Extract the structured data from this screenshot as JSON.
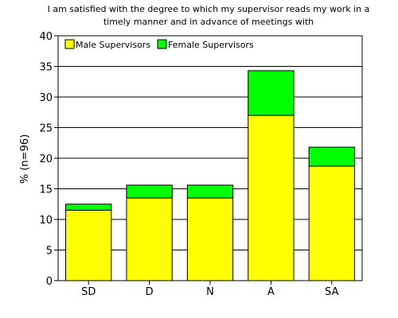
{
  "chart_data": {
    "type": "bar",
    "stacked": true,
    "title_lines": [
      "I am satisfied with the degree to which my supervisor reads my work in a",
      "timely manner and in advance of meetings with"
    ],
    "xlabel": "",
    "ylabel": "% (n=96)",
    "ylim": [
      0,
      40
    ],
    "yticks": [
      0,
      5,
      10,
      15,
      20,
      25,
      30,
      35,
      40
    ],
    "grid": "horizontal",
    "legend_position": "top-left",
    "categories": [
      "SD",
      "D",
      "N",
      "A",
      "SA"
    ],
    "series": [
      {
        "name": "Male Supervisors",
        "color": "#ffff00",
        "values": [
          11.5,
          13.5,
          13.5,
          27.0,
          18.7
        ]
      },
      {
        "name": "Female Supervisors",
        "color": "#00ff00",
        "values": [
          1.0,
          2.1,
          2.1,
          7.3,
          3.1
        ]
      }
    ]
  }
}
